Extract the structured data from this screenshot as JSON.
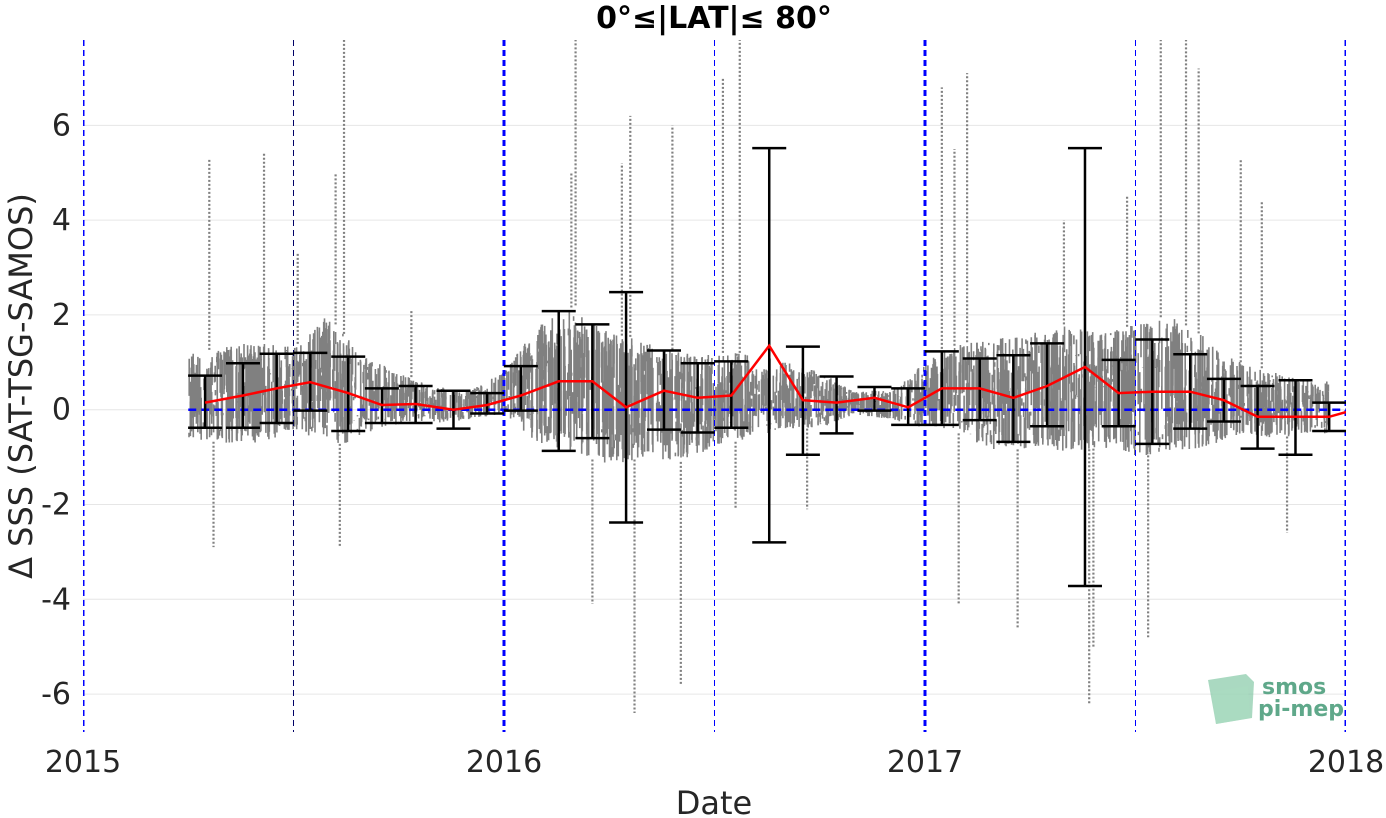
{
  "chart_data": {
    "type": "scatter",
    "title": "0°≤|LAT|≤ 80°",
    "xlabel": "Date",
    "ylabel": "Δ SSS (SAT-TSG-SAMOS)",
    "xlim": [
      2015.0,
      2018.0
    ],
    "ylim": [
      -6.8,
      7.8
    ],
    "x_ticks": [
      {
        "value": 2015,
        "label": "2015"
      },
      {
        "value": 2016,
        "label": "2016"
      },
      {
        "value": 2017,
        "label": "2017"
      },
      {
        "value": 2018,
        "label": "2018"
      }
    ],
    "y_ticks": [
      {
        "value": -6,
        "label": "-6"
      },
      {
        "value": -4,
        "label": "-4"
      },
      {
        "value": -2,
        "label": "-2"
      },
      {
        "value": 0,
        "label": "0"
      },
      {
        "value": 2,
        "label": "2"
      },
      {
        "value": 4,
        "label": "4"
      },
      {
        "value": 6,
        "label": "6"
      }
    ],
    "grid": "horizontal",
    "year_lines": [
      2015,
      2016,
      2017,
      2018
    ],
    "half_year_lines": [
      2015.5,
      2016.5,
      2017.5
    ],
    "zero_line": 0,
    "colors": {
      "scatter": "#808080",
      "mean_line": "#ff0000",
      "error_bars": "#000000",
      "reference_lines": "#0000ff",
      "grid": "#e6e6e6"
    },
    "scatter_envelope": {
      "description_units": "data units (date in decimal years, dSSS in psu)",
      "x": [
        2015.25,
        2015.33,
        2015.42,
        2015.5,
        2015.58,
        2015.63,
        2015.67,
        2015.75,
        2015.83,
        2015.92,
        2016.0,
        2016.08,
        2016.17,
        2016.25,
        2016.33,
        2016.42,
        2016.5,
        2016.58,
        2016.67,
        2016.75,
        2016.83,
        2016.92,
        2017.0,
        2017.08,
        2017.17,
        2017.25,
        2017.33,
        2017.42,
        2017.5,
        2017.58,
        2017.67,
        2017.75,
        2017.83,
        2017.92
      ],
      "q_low": [
        -0.6,
        -0.7,
        -0.7,
        -0.5,
        -0.6,
        -0.8,
        -0.5,
        -0.3,
        -0.3,
        -0.2,
        -0.1,
        -0.7,
        -0.9,
        -1.2,
        -1.0,
        -1.1,
        -0.8,
        -0.6,
        -0.4,
        -0.4,
        -0.1,
        -0.2,
        -0.4,
        -0.5,
        -0.9,
        -0.8,
        -0.9,
        -0.8,
        -1.0,
        -0.9,
        -0.8,
        -0.5,
        -0.6,
        -0.5
      ],
      "q_high": [
        1.2,
        1.3,
        1.5,
        1.3,
        2.0,
        1.5,
        1.1,
        0.8,
        0.5,
        0.4,
        0.8,
        1.8,
        2.2,
        1.6,
        1.5,
        1.2,
        1.2,
        1.2,
        1.0,
        0.8,
        0.4,
        0.4,
        1.0,
        1.4,
        1.5,
        1.6,
        1.8,
        1.6,
        1.8,
        2.0,
        1.5,
        1.0,
        0.8,
        0.6
      ],
      "spikes": [
        {
          "x": 2015.3,
          "y": 5.3
        },
        {
          "x": 2015.31,
          "y": -2.9
        },
        {
          "x": 2015.43,
          "y": 5.4
        },
        {
          "x": 2015.51,
          "y": 3.3
        },
        {
          "x": 2015.6,
          "y": 5.0
        },
        {
          "x": 2015.62,
          "y": 7.8
        },
        {
          "x": 2015.61,
          "y": -2.9
        },
        {
          "x": 2015.78,
          "y": 2.1
        },
        {
          "x": 2016.17,
          "y": 7.8
        },
        {
          "x": 2016.16,
          "y": 5.0
        },
        {
          "x": 2016.21,
          "y": -4.1
        },
        {
          "x": 2016.28,
          "y": 5.2
        },
        {
          "x": 2016.3,
          "y": 6.2
        },
        {
          "x": 2016.31,
          "y": -6.4
        },
        {
          "x": 2016.4,
          "y": 6.0
        },
        {
          "x": 2016.42,
          "y": -5.8
        },
        {
          "x": 2016.52,
          "y": 7.0
        },
        {
          "x": 2016.56,
          "y": 7.8
        },
        {
          "x": 2016.55,
          "y": -2.1
        },
        {
          "x": 2016.72,
          "y": -2.1
        },
        {
          "x": 2017.04,
          "y": 6.8
        },
        {
          "x": 2017.07,
          "y": 5.5
        },
        {
          "x": 2017.1,
          "y": 7.1
        },
        {
          "x": 2017.08,
          "y": -4.1
        },
        {
          "x": 2017.22,
          "y": -4.6
        },
        {
          "x": 2017.33,
          "y": 4.0
        },
        {
          "x": 2017.39,
          "y": -6.2
        },
        {
          "x": 2017.4,
          "y": -5.0
        },
        {
          "x": 2017.48,
          "y": 4.5
        },
        {
          "x": 2017.53,
          "y": -4.8
        },
        {
          "x": 2017.56,
          "y": 7.8
        },
        {
          "x": 2017.62,
          "y": 7.8
        },
        {
          "x": 2017.65,
          "y": 7.2
        },
        {
          "x": 2017.75,
          "y": 5.3
        },
        {
          "x": 2017.8,
          "y": 4.4
        },
        {
          "x": 2017.86,
          "y": -2.6
        }
      ]
    },
    "monthly_stats": {
      "x": [
        2015.29,
        2015.38,
        2015.46,
        2015.54,
        2015.63,
        2015.71,
        2015.79,
        2015.88,
        2015.96,
        2016.04,
        2016.13,
        2016.21,
        2016.29,
        2016.38,
        2016.46,
        2016.54,
        2016.63,
        2016.71,
        2016.79,
        2016.88,
        2016.96,
        2017.04,
        2017.13,
        2017.21,
        2017.29,
        2017.38,
        2017.46,
        2017.54,
        2017.63,
        2017.71,
        2017.79,
        2017.88,
        2017.96,
        2018.0
      ],
      "mean": [
        0.15,
        0.3,
        0.45,
        0.58,
        0.35,
        0.1,
        0.12,
        0.0,
        0.1,
        0.3,
        0.6,
        0.6,
        0.05,
        0.4,
        0.25,
        0.3,
        1.35,
        0.2,
        0.15,
        0.25,
        0.05,
        0.45,
        0.45,
        0.25,
        0.5,
        0.9,
        0.35,
        0.38,
        0.38,
        0.2,
        -0.15,
        -0.15,
        -0.15,
        -0.05
      ],
      "upper": [
        0.72,
        0.98,
        1.18,
        1.2,
        1.12,
        0.45,
        0.5,
        0.4,
        0.35,
        0.92,
        2.08,
        1.8,
        2.48,
        1.25,
        0.98,
        1.02,
        5.52,
        1.33,
        0.7,
        0.48,
        0.45,
        1.23,
        1.08,
        1.15,
        1.4,
        5.52,
        1.05,
        1.48,
        1.17,
        0.65,
        0.5,
        0.62,
        0.15,
        null
      ],
      "lower": [
        -0.38,
        -0.38,
        -0.28,
        -0.02,
        -0.45,
        -0.28,
        -0.28,
        -0.4,
        -0.08,
        -0.02,
        -0.87,
        -0.6,
        -2.38,
        -0.42,
        -0.48,
        -0.38,
        -2.8,
        -0.95,
        -0.5,
        -0.02,
        -0.32,
        -0.32,
        -0.22,
        -0.68,
        -0.35,
        -3.72,
        -0.35,
        -0.72,
        -0.4,
        -0.25,
        -0.82,
        -0.95,
        -0.45,
        null
      ]
    }
  },
  "logo": {
    "line1": "smos",
    "line2": "pi-mep"
  }
}
